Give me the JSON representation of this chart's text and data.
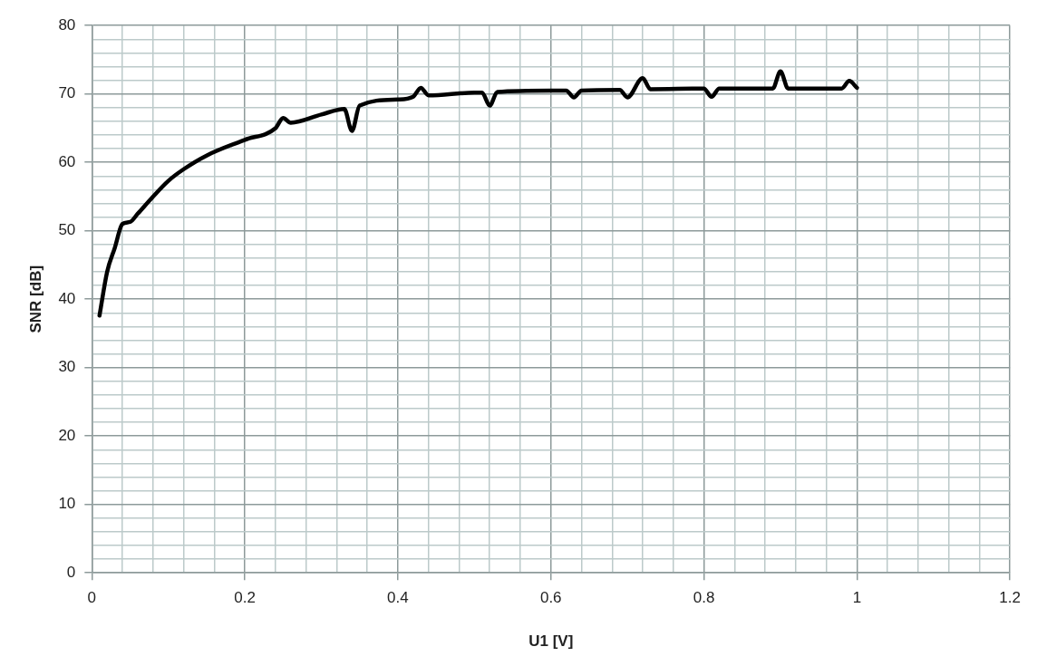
{
  "chart_data": {
    "type": "line",
    "xlabel": "U1 [V]",
    "ylabel": "SNR [dB]",
    "x": [
      0.01,
      0.02,
      0.03,
      0.04,
      0.05,
      0.06,
      0.08,
      0.1,
      0.12,
      0.15,
      0.2,
      0.24,
      0.25,
      0.26,
      0.3,
      0.33,
      0.34,
      0.35,
      0.4,
      0.42,
      0.43,
      0.44,
      0.5,
      0.51,
      0.52,
      0.53,
      0.6,
      0.62,
      0.63,
      0.64,
      0.69,
      0.7,
      0.72,
      0.73,
      0.8,
      0.81,
      0.82,
      0.89,
      0.9,
      0.91,
      0.98,
      0.99,
      1.0
    ],
    "series": [
      {
        "color": "#000000",
        "values": [
          37.6,
          44,
          47.5,
          51,
          51.3,
          52.5,
          55,
          57.3,
          59,
          61,
          63.3,
          65,
          66.5,
          65.8,
          67,
          67.8,
          64.6,
          68.3,
          69.2,
          69.6,
          70.9,
          69.8,
          70.2,
          70.2,
          68.3,
          70.3,
          70.5,
          70.5,
          69.5,
          70.5,
          70.6,
          69.5,
          72.3,
          70.7,
          70.8,
          69.6,
          70.8,
          70.8,
          73.3,
          70.8,
          70.8,
          71.9,
          70.9
        ]
      }
    ],
    "xlim": [
      0,
      1.2
    ],
    "xticks": [
      0,
      {
        "value": 0.04,
        "label": null
      },
      {
        "value": 0.08,
        "label": null
      },
      {
        "value": 0.12,
        "label": null
      },
      {
        "value": 0.16,
        "label": null
      },
      0.2,
      {
        "value": 0.24,
        "label": null
      },
      {
        "value": 0.28,
        "label": null
      },
      {
        "value": 0.32,
        "label": null
      },
      {
        "value": 0.36,
        "label": null
      },
      0.4,
      {
        "value": 0.44,
        "label": null
      },
      {
        "value": 0.48,
        "label": null
      },
      {
        "value": 0.52,
        "label": null
      },
      {
        "value": 0.56,
        "label": null
      },
      0.6,
      {
        "value": 0.64,
        "label": null
      },
      {
        "value": 0.68,
        "label": null
      },
      {
        "value": 0.72,
        "label": null
      },
      {
        "value": 0.76,
        "label": null
      },
      0.8,
      {
        "value": 0.84,
        "label": null
      },
      {
        "value": 0.88,
        "label": null
      },
      {
        "value": 0.92,
        "label": null
      },
      {
        "value": 0.96,
        "label": null
      },
      1,
      {
        "value": 1.04,
        "label": null
      },
      {
        "value": 1.08,
        "label": null
      },
      {
        "value": 1.12,
        "label": null
      },
      {
        "value": 1.16,
        "label": null
      },
      1.2
    ],
    "ylim": [
      0,
      80
    ],
    "yticks": [
      0,
      {
        "value": 2,
        "label": null
      },
      {
        "value": 4,
        "label": null
      },
      {
        "value": 6,
        "label": null
      },
      {
        "value": 8,
        "label": null
      },
      10,
      {
        "value": 12,
        "label": null
      },
      {
        "value": 14,
        "label": null
      },
      {
        "value": 16,
        "label": null
      },
      {
        "value": 18,
        "label": null
      },
      20,
      {
        "value": 22,
        "label": null
      },
      {
        "value": 24,
        "label": null
      },
      {
        "value": 26,
        "label": null
      },
      {
        "value": 28,
        "label": null
      },
      30,
      {
        "value": 32,
        "label": null
      },
      {
        "value": 34,
        "label": null
      },
      {
        "value": 36,
        "label": null
      },
      {
        "value": 38,
        "label": null
      },
      40,
      {
        "value": 42,
        "label": null
      },
      {
        "value": 44,
        "label": null
      },
      {
        "value": 46,
        "label": null
      },
      {
        "value": 48,
        "label": null
      },
      50,
      {
        "value": 52,
        "label": null
      },
      {
        "value": 54,
        "label": null
      },
      {
        "value": 56,
        "label": null
      },
      {
        "value": 58,
        "label": null
      },
      60,
      {
        "value": 62,
        "label": null
      },
      {
        "value": 64,
        "label": null
      },
      {
        "value": 66,
        "label": null
      },
      {
        "value": 68,
        "label": null
      },
      70,
      {
        "value": 72,
        "label": null
      },
      {
        "value": 74,
        "label": null
      },
      {
        "value": 76,
        "label": null
      },
      {
        "value": 78,
        "label": null
      },
      80
    ],
    "grid": true,
    "marker": "none",
    "line_style": "solid"
  }
}
